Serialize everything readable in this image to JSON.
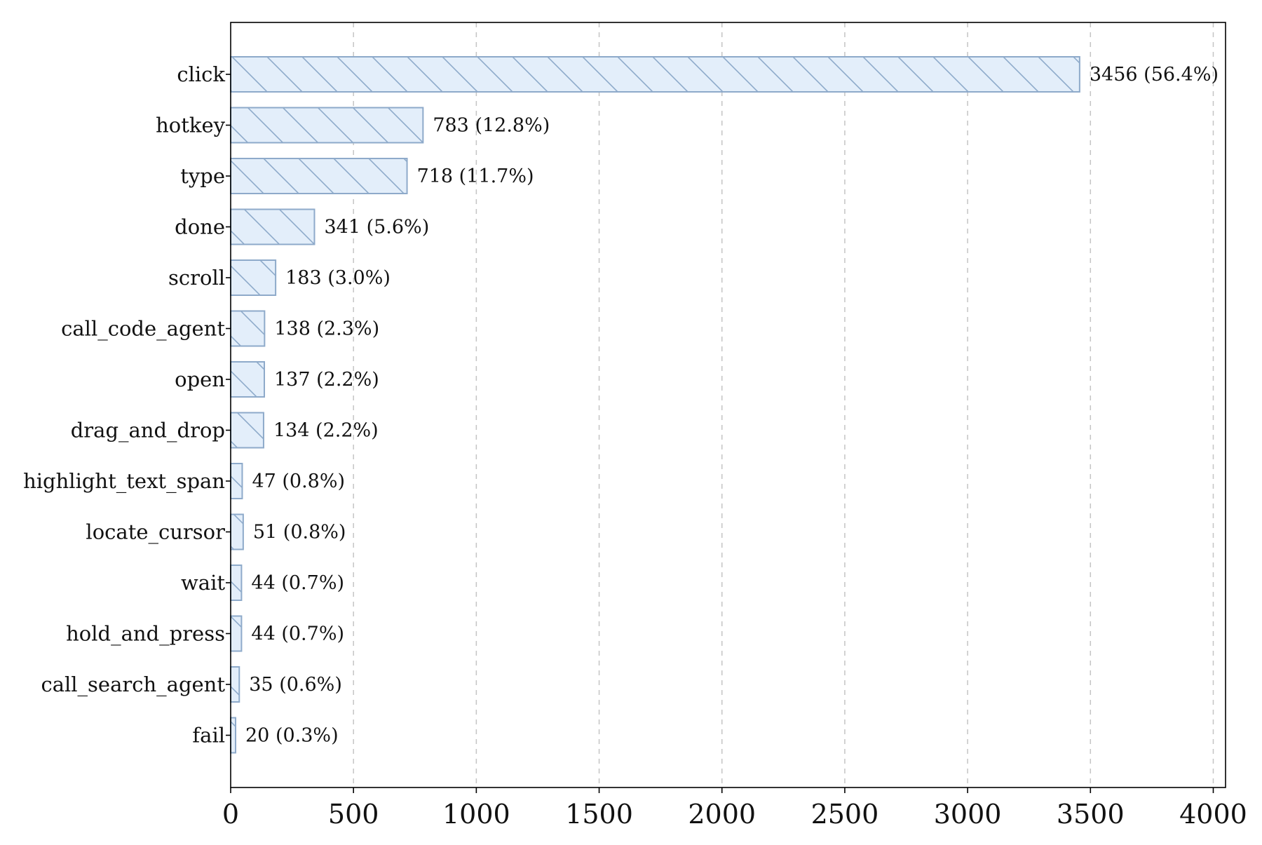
{
  "chart_data": {
    "type": "bar",
    "orientation": "horizontal",
    "title": "",
    "xlabel": "",
    "ylabel": "",
    "categories": [
      "click",
      "hotkey",
      "type",
      "done",
      "scroll",
      "call_code_agent",
      "open",
      "drag_and_drop",
      "highlight_text_span",
      "locate_cursor",
      "wait",
      "hold_and_press",
      "call_search_agent",
      "fail"
    ],
    "values": [
      3456,
      783,
      718,
      341,
      183,
      138,
      137,
      134,
      47,
      51,
      44,
      44,
      35,
      20
    ],
    "value_labels": [
      "3456 (56.4%)",
      "783 (12.8%)",
      "718 (11.7%)",
      "341 (5.6%)",
      "183 (3.0%)",
      "138 (2.3%)",
      "137 (2.2%)",
      "134 (2.2%)",
      "47 (0.8%)",
      "51 (0.8%)",
      "44 (0.7%)",
      "44 (0.7%)",
      "35 (0.6%)",
      "20 (0.3%)"
    ],
    "xlim": [
      0,
      4050
    ],
    "xticks": [
      0,
      500,
      1000,
      1500,
      2000,
      2500,
      3000,
      3500,
      4000
    ],
    "xtick_labels": [
      "0",
      "500",
      "1000",
      "1500",
      "2000",
      "2500",
      "3000",
      "3500",
      "4000"
    ],
    "grid": "x-dashed",
    "legend": "none",
    "colors": {
      "bar_fill": "#e3eefa",
      "bar_edge": "#8eaaca",
      "hatch": "#8eaaca",
      "grid": "#c4c4c4",
      "axis": "#000000"
    },
    "hatch": "backslash"
  }
}
